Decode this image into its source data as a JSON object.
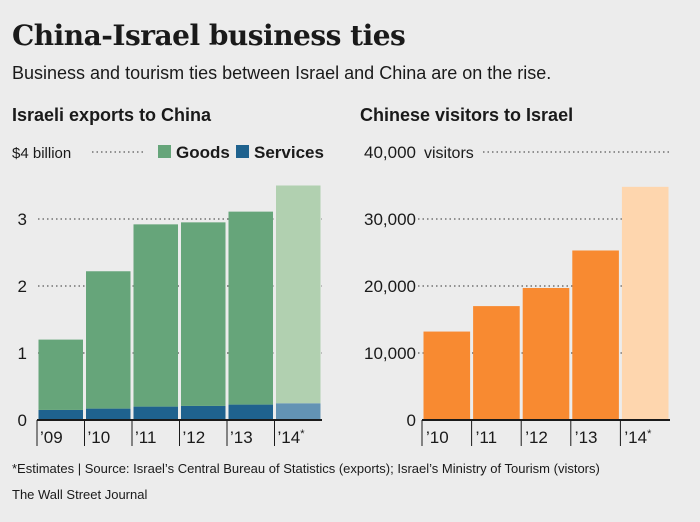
{
  "title": "China-Israel business ties",
  "subtitle": "Business and tourism ties between Israel and China are on the rise.",
  "footnote": "*Estimates | Source: Israel’s Central Bureau of Statistics (exports);  Israel’s Ministry of Tourism (vistors)",
  "publisher": "The Wall Street Journal",
  "colors": {
    "goods": "#66a57a",
    "goods_estimate": "#b1d0b0",
    "services": "#1f628e",
    "services_estimate": "#6393b4",
    "visitors": "#f88a31",
    "visitors_estimate": "#fed6ae",
    "axis": "#1a1a1a",
    "grid": "#333333"
  },
  "chart_data": [
    {
      "type": "bar",
      "stacked": true,
      "title": "Israeli exports to China",
      "unit_label": "$4 billion",
      "categories": [
        "’09",
        "’10",
        "’11",
        "’12",
        "’13",
        "’14*"
      ],
      "estimate_index": 5,
      "series": [
        {
          "name": "Services",
          "values": [
            0.15,
            0.17,
            0.2,
            0.21,
            0.23,
            0.25
          ]
        },
        {
          "name": "Goods",
          "values": [
            1.05,
            2.05,
            2.72,
            2.74,
            2.88,
            3.25
          ]
        }
      ],
      "ylim": [
        0,
        4
      ],
      "yticks": [
        0,
        1,
        2,
        3,
        4
      ],
      "ytick_labels": [
        "0",
        "1",
        "2",
        "3",
        "$4 billion"
      ],
      "grid": "dotted",
      "legend": "top"
    },
    {
      "type": "bar",
      "title": "Chinese visitors to Israel",
      "unit_label": "visitors",
      "categories": [
        "’10",
        "’11",
        "’12",
        "’13",
        "’14*"
      ],
      "estimate_index": 4,
      "series": [
        {
          "values": [
            13200,
            17000,
            19700,
            25300,
            34800
          ]
        }
      ],
      "ylim": [
        0,
        40000
      ],
      "yticks": [
        0,
        10000,
        20000,
        30000,
        40000
      ],
      "ytick_labels": [
        "0",
        "10,000",
        "20,000",
        "30,000",
        "40,000"
      ],
      "grid": "dotted"
    }
  ]
}
